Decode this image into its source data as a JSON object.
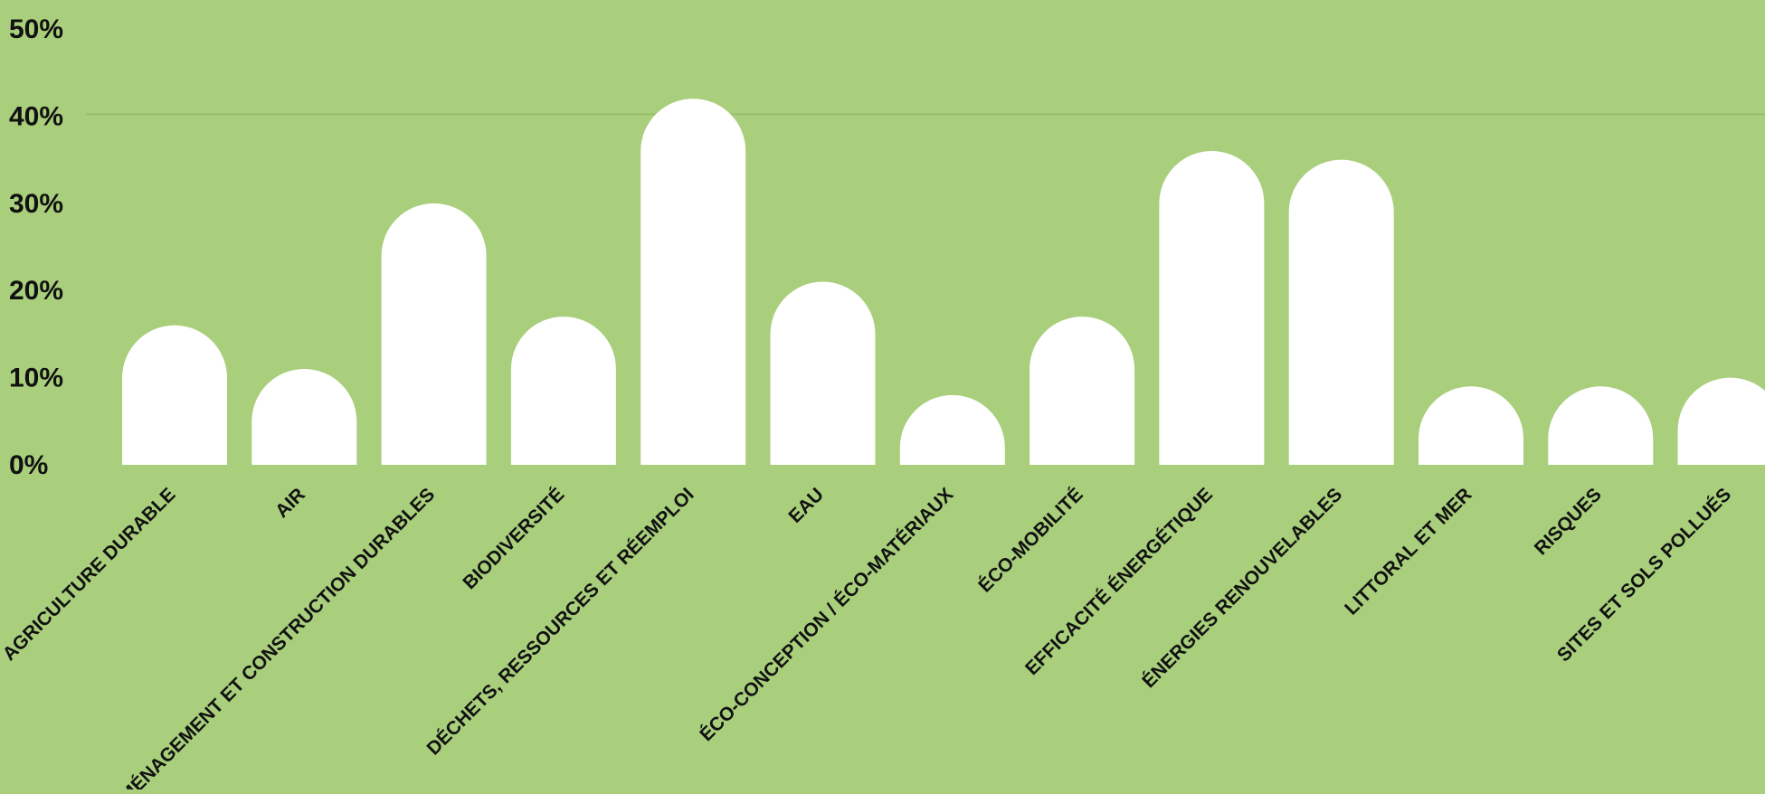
{
  "chart_data": {
    "type": "bar",
    "title": "",
    "xlabel": "",
    "ylabel": "",
    "ylim": [
      0,
      50
    ],
    "yticks": [
      0,
      10,
      20,
      30,
      40,
      50
    ],
    "ytick_labels": [
      "0%",
      "10%",
      "20%",
      "30%",
      "40%",
      "50%"
    ],
    "grid": "y-line-at-40",
    "categories": [
      "AGRICULTURE DURABLE",
      "AIR",
      "AMÉNAGEMENT ET CONSTRUCTION DURABLES",
      "BIODIVERSITÉ",
      "DÉCHETS, RESSOURCES ET RÉEMPLOI",
      "EAU",
      "ÉCO-CONCEPTION / ÉCO-MATÉRIAUX",
      "ÉCO-MOBILITÉ",
      "EFFICACITÉ ÉNERGÉTIQUE",
      "ÉNERGIES RENOUVELABLES",
      "LITTORAL ET MER",
      "RISQUES",
      "SITES ET SOLS POLLUÉS"
    ],
    "values": [
      16,
      11,
      30,
      17,
      42,
      21,
      8,
      17,
      36,
      35,
      9,
      9,
      10
    ]
  },
  "colors": {
    "background": "#a9cf7c",
    "bar": "#ffffff",
    "text": "#111111",
    "grid": "#97c06a"
  }
}
